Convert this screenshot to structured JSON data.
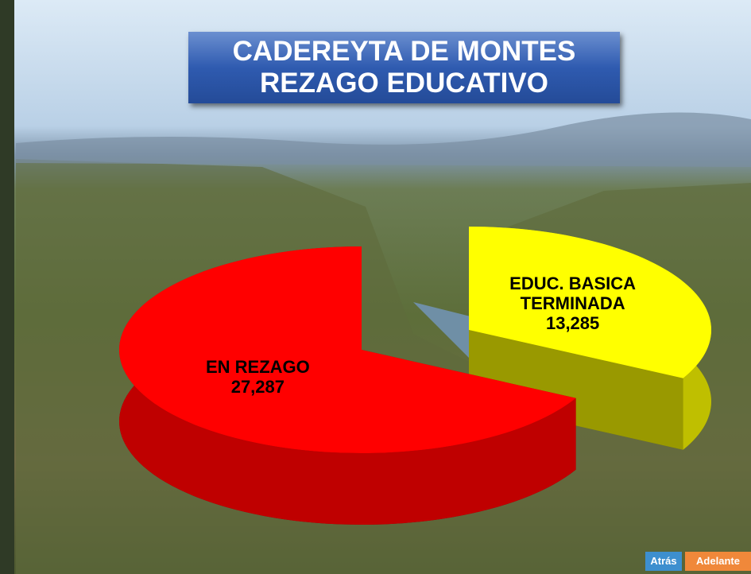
{
  "chart_data": {
    "type": "pie",
    "title": [
      "CADEREYTA DE MONTES",
      "REZAGO EDUCATIVO"
    ],
    "categories": [
      "EDUC. BASICA TERMINADA",
      "EN REZAGO"
    ],
    "values": [
      13285,
      27287
    ],
    "value_labels": [
      "13,285",
      "27,287"
    ],
    "colors": [
      "#ffff00",
      "#ff0000"
    ],
    "exploded": [
      true,
      false
    ]
  },
  "buttons": [
    "Atrás",
    "Adelante"
  ]
}
